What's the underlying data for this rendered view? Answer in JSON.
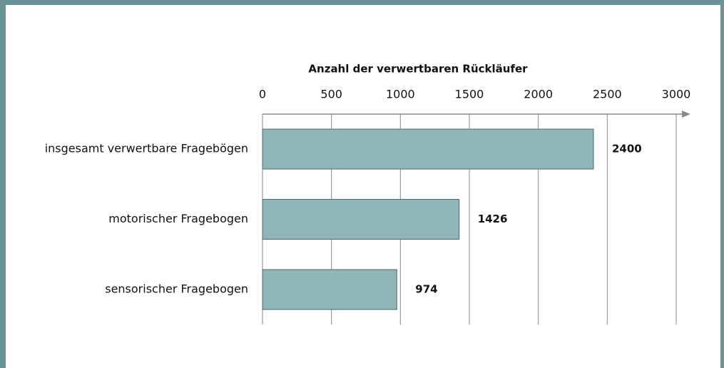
{
  "chart_data": {
    "type": "bar",
    "orientation": "horizontal",
    "title": "Anzahl der verwertbaren Rückläufer",
    "categories": [
      "insgesamt verwertbare Fragebögen",
      "motorischer Fragebogen",
      "sensorischer Fragebogen"
    ],
    "values": [
      2400,
      1426,
      974
    ],
    "color": "#8fb5b6",
    "xlim": [
      0,
      3000
    ],
    "xticks": [
      0,
      500,
      1000,
      1500,
      2000,
      2500,
      3000
    ],
    "grid": true
  }
}
